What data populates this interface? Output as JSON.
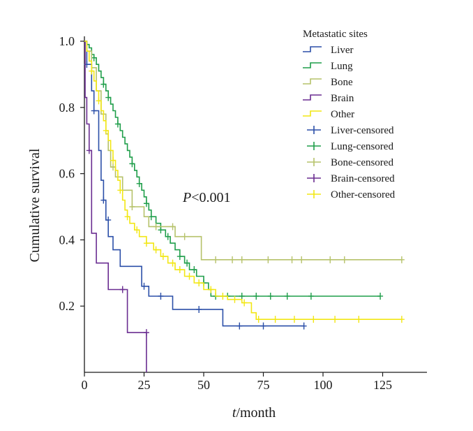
{
  "chart_data": {
    "type": "line",
    "subtype": "kaplan-meier step",
    "xlabel_italic": "t",
    "xlabel_rest": "/month",
    "ylabel": "Cumulative survival",
    "xlim": [
      0,
      137
    ],
    "ylim": [
      0,
      1.0
    ],
    "xticks": [
      "0",
      "25",
      "50",
      "75",
      "100",
      "125"
    ],
    "yticks": [
      "1.0",
      "0.8",
      "0.6",
      "0.4",
      "0.2"
    ],
    "annotation_italic": "P",
    "annotation_rest": "<0.001",
    "legend_title": "Metastatic sites",
    "legend_position": "top-right",
    "legend_entries": [
      "Liver",
      "Lung",
      "Bone",
      "Brain",
      "Other",
      "Liver-censored",
      "Lung-censored",
      "Bone-censored",
      "Brain-censored",
      "Other-censored"
    ],
    "series": [
      {
        "name": "Liver",
        "color": "#2b4fa8",
        "steps": [
          [
            0,
            1.0
          ],
          [
            1,
            0.93
          ],
          [
            3,
            0.85
          ],
          [
            4,
            0.79
          ],
          [
            6,
            0.67
          ],
          [
            7,
            0.58
          ],
          [
            8,
            0.52
          ],
          [
            9,
            0.46
          ],
          [
            10,
            0.41
          ],
          [
            12,
            0.37
          ],
          [
            15,
            0.32
          ],
          [
            24,
            0.26
          ],
          [
            27,
            0.23
          ],
          [
            37,
            0.19
          ],
          [
            58,
            0.14
          ],
          [
            92,
            0.14
          ]
        ],
        "censored": [
          [
            1,
            0.93
          ],
          [
            4,
            0.79
          ],
          [
            8,
            0.52
          ],
          [
            10,
            0.46
          ],
          [
            25,
            0.26
          ],
          [
            32,
            0.23
          ],
          [
            48,
            0.19
          ],
          [
            65,
            0.14
          ],
          [
            75,
            0.14
          ],
          [
            92,
            0.14
          ]
        ]
      },
      {
        "name": "Lung",
        "color": "#1f9e4a",
        "steps": [
          [
            0,
            1.0
          ],
          [
            1,
            0.99
          ],
          [
            2,
            0.98
          ],
          [
            3,
            0.96
          ],
          [
            4,
            0.95
          ],
          [
            5,
            0.93
          ],
          [
            6,
            0.91
          ],
          [
            7,
            0.89
          ],
          [
            8,
            0.87
          ],
          [
            9,
            0.85
          ],
          [
            10,
            0.83
          ],
          [
            11,
            0.81
          ],
          [
            12,
            0.79
          ],
          [
            13,
            0.77
          ],
          [
            14,
            0.75
          ],
          [
            15,
            0.73
          ],
          [
            16,
            0.71
          ],
          [
            17,
            0.69
          ],
          [
            18,
            0.67
          ],
          [
            19,
            0.65
          ],
          [
            20,
            0.63
          ],
          [
            21,
            0.61
          ],
          [
            22,
            0.59
          ],
          [
            23,
            0.57
          ],
          [
            24,
            0.55
          ],
          [
            25,
            0.53
          ],
          [
            26,
            0.51
          ],
          [
            27,
            0.49
          ],
          [
            28,
            0.47
          ],
          [
            30,
            0.45
          ],
          [
            32,
            0.43
          ],
          [
            34,
            0.41
          ],
          [
            36,
            0.39
          ],
          [
            38,
            0.37
          ],
          [
            40,
            0.35
          ],
          [
            42,
            0.33
          ],
          [
            44,
            0.31
          ],
          [
            47,
            0.29
          ],
          [
            50,
            0.27
          ],
          [
            52,
            0.25
          ],
          [
            53,
            0.23
          ],
          [
            124,
            0.23
          ]
        ],
        "censored": [
          [
            4,
            0.95
          ],
          [
            8,
            0.87
          ],
          [
            10,
            0.83
          ],
          [
            14,
            0.75
          ],
          [
            20,
            0.63
          ],
          [
            23,
            0.57
          ],
          [
            26,
            0.51
          ],
          [
            28,
            0.47
          ],
          [
            32,
            0.43
          ],
          [
            35,
            0.41
          ],
          [
            40,
            0.35
          ],
          [
            43,
            0.33
          ],
          [
            46,
            0.31
          ],
          [
            50,
            0.27
          ],
          [
            55,
            0.23
          ],
          [
            60,
            0.23
          ],
          [
            66,
            0.23
          ],
          [
            72,
            0.23
          ],
          [
            78,
            0.23
          ],
          [
            85,
            0.23
          ],
          [
            95,
            0.23
          ],
          [
            124,
            0.23
          ]
        ]
      },
      {
        "name": "Bone",
        "color": "#b6c26a",
        "steps": [
          [
            0,
            1.0
          ],
          [
            1,
            0.97
          ],
          [
            3,
            0.92
          ],
          [
            5,
            0.85
          ],
          [
            7,
            0.78
          ],
          [
            9,
            0.72
          ],
          [
            10,
            0.67
          ],
          [
            11,
            0.62
          ],
          [
            13,
            0.59
          ],
          [
            16,
            0.55
          ],
          [
            20,
            0.5
          ],
          [
            25,
            0.47
          ],
          [
            27,
            0.44
          ],
          [
            38,
            0.41
          ],
          [
            49,
            0.34
          ],
          [
            133,
            0.34
          ]
        ],
        "censored": [
          [
            12,
            0.62
          ],
          [
            20,
            0.5
          ],
          [
            30,
            0.44
          ],
          [
            37,
            0.44
          ],
          [
            42,
            0.41
          ],
          [
            55,
            0.34
          ],
          [
            62,
            0.34
          ],
          [
            66,
            0.34
          ],
          [
            77,
            0.34
          ],
          [
            87,
            0.34
          ],
          [
            91,
            0.34
          ],
          [
            103,
            0.34
          ],
          [
            109,
            0.34
          ],
          [
            133,
            0.34
          ]
        ]
      },
      {
        "name": "Brain",
        "color": "#6a2d91",
        "steps": [
          [
            0,
            1.0
          ],
          [
            0.3,
            0.83
          ],
          [
            1,
            0.75
          ],
          [
            2,
            0.67
          ],
          [
            3,
            0.42
          ],
          [
            5,
            0.33
          ],
          [
            10,
            0.25
          ],
          [
            17,
            0.25
          ],
          [
            18,
            0.12
          ],
          [
            26,
            0.12
          ],
          [
            26,
            0.0
          ]
        ],
        "censored": [
          [
            2,
            0.67
          ],
          [
            16,
            0.25
          ],
          [
            26,
            0.12
          ]
        ]
      },
      {
        "name": "Other",
        "color": "#f2e714",
        "steps": [
          [
            0,
            1.0
          ],
          [
            1,
            0.97
          ],
          [
            2,
            0.94
          ],
          [
            3,
            0.91
          ],
          [
            4,
            0.88
          ],
          [
            5,
            0.85
          ],
          [
            6,
            0.82
          ],
          [
            7,
            0.79
          ],
          [
            8,
            0.76
          ],
          [
            9,
            0.73
          ],
          [
            10,
            0.7
          ],
          [
            11,
            0.67
          ],
          [
            12,
            0.64
          ],
          [
            13,
            0.61
          ],
          [
            14,
            0.58
          ],
          [
            15,
            0.55
          ],
          [
            16,
            0.52
          ],
          [
            17,
            0.49
          ],
          [
            18,
            0.47
          ],
          [
            19,
            0.45
          ],
          [
            21,
            0.43
          ],
          [
            23,
            0.41
          ],
          [
            26,
            0.39
          ],
          [
            29,
            0.37
          ],
          [
            32,
            0.35
          ],
          [
            35,
            0.33
          ],
          [
            38,
            0.31
          ],
          [
            42,
            0.29
          ],
          [
            46,
            0.27
          ],
          [
            50,
            0.25
          ],
          [
            55,
            0.23
          ],
          [
            60,
            0.22
          ],
          [
            66,
            0.21
          ],
          [
            70,
            0.18
          ],
          [
            72,
            0.16
          ],
          [
            133,
            0.16
          ]
        ],
        "censored": [
          [
            3,
            0.91
          ],
          [
            6,
            0.82
          ],
          [
            9,
            0.73
          ],
          [
            12,
            0.64
          ],
          [
            15,
            0.55
          ],
          [
            18,
            0.47
          ],
          [
            22,
            0.43
          ],
          [
            26,
            0.39
          ],
          [
            30,
            0.37
          ],
          [
            33,
            0.35
          ],
          [
            37,
            0.33
          ],
          [
            40,
            0.31
          ],
          [
            44,
            0.29
          ],
          [
            48,
            0.27
          ],
          [
            53,
            0.25
          ],
          [
            58,
            0.23
          ],
          [
            63,
            0.22
          ],
          [
            67,
            0.21
          ],
          [
            73,
            0.16
          ],
          [
            80,
            0.16
          ],
          [
            88,
            0.16
          ],
          [
            96,
            0.16
          ],
          [
            105,
            0.16
          ],
          [
            115,
            0.16
          ],
          [
            133,
            0.16
          ]
        ]
      }
    ]
  }
}
